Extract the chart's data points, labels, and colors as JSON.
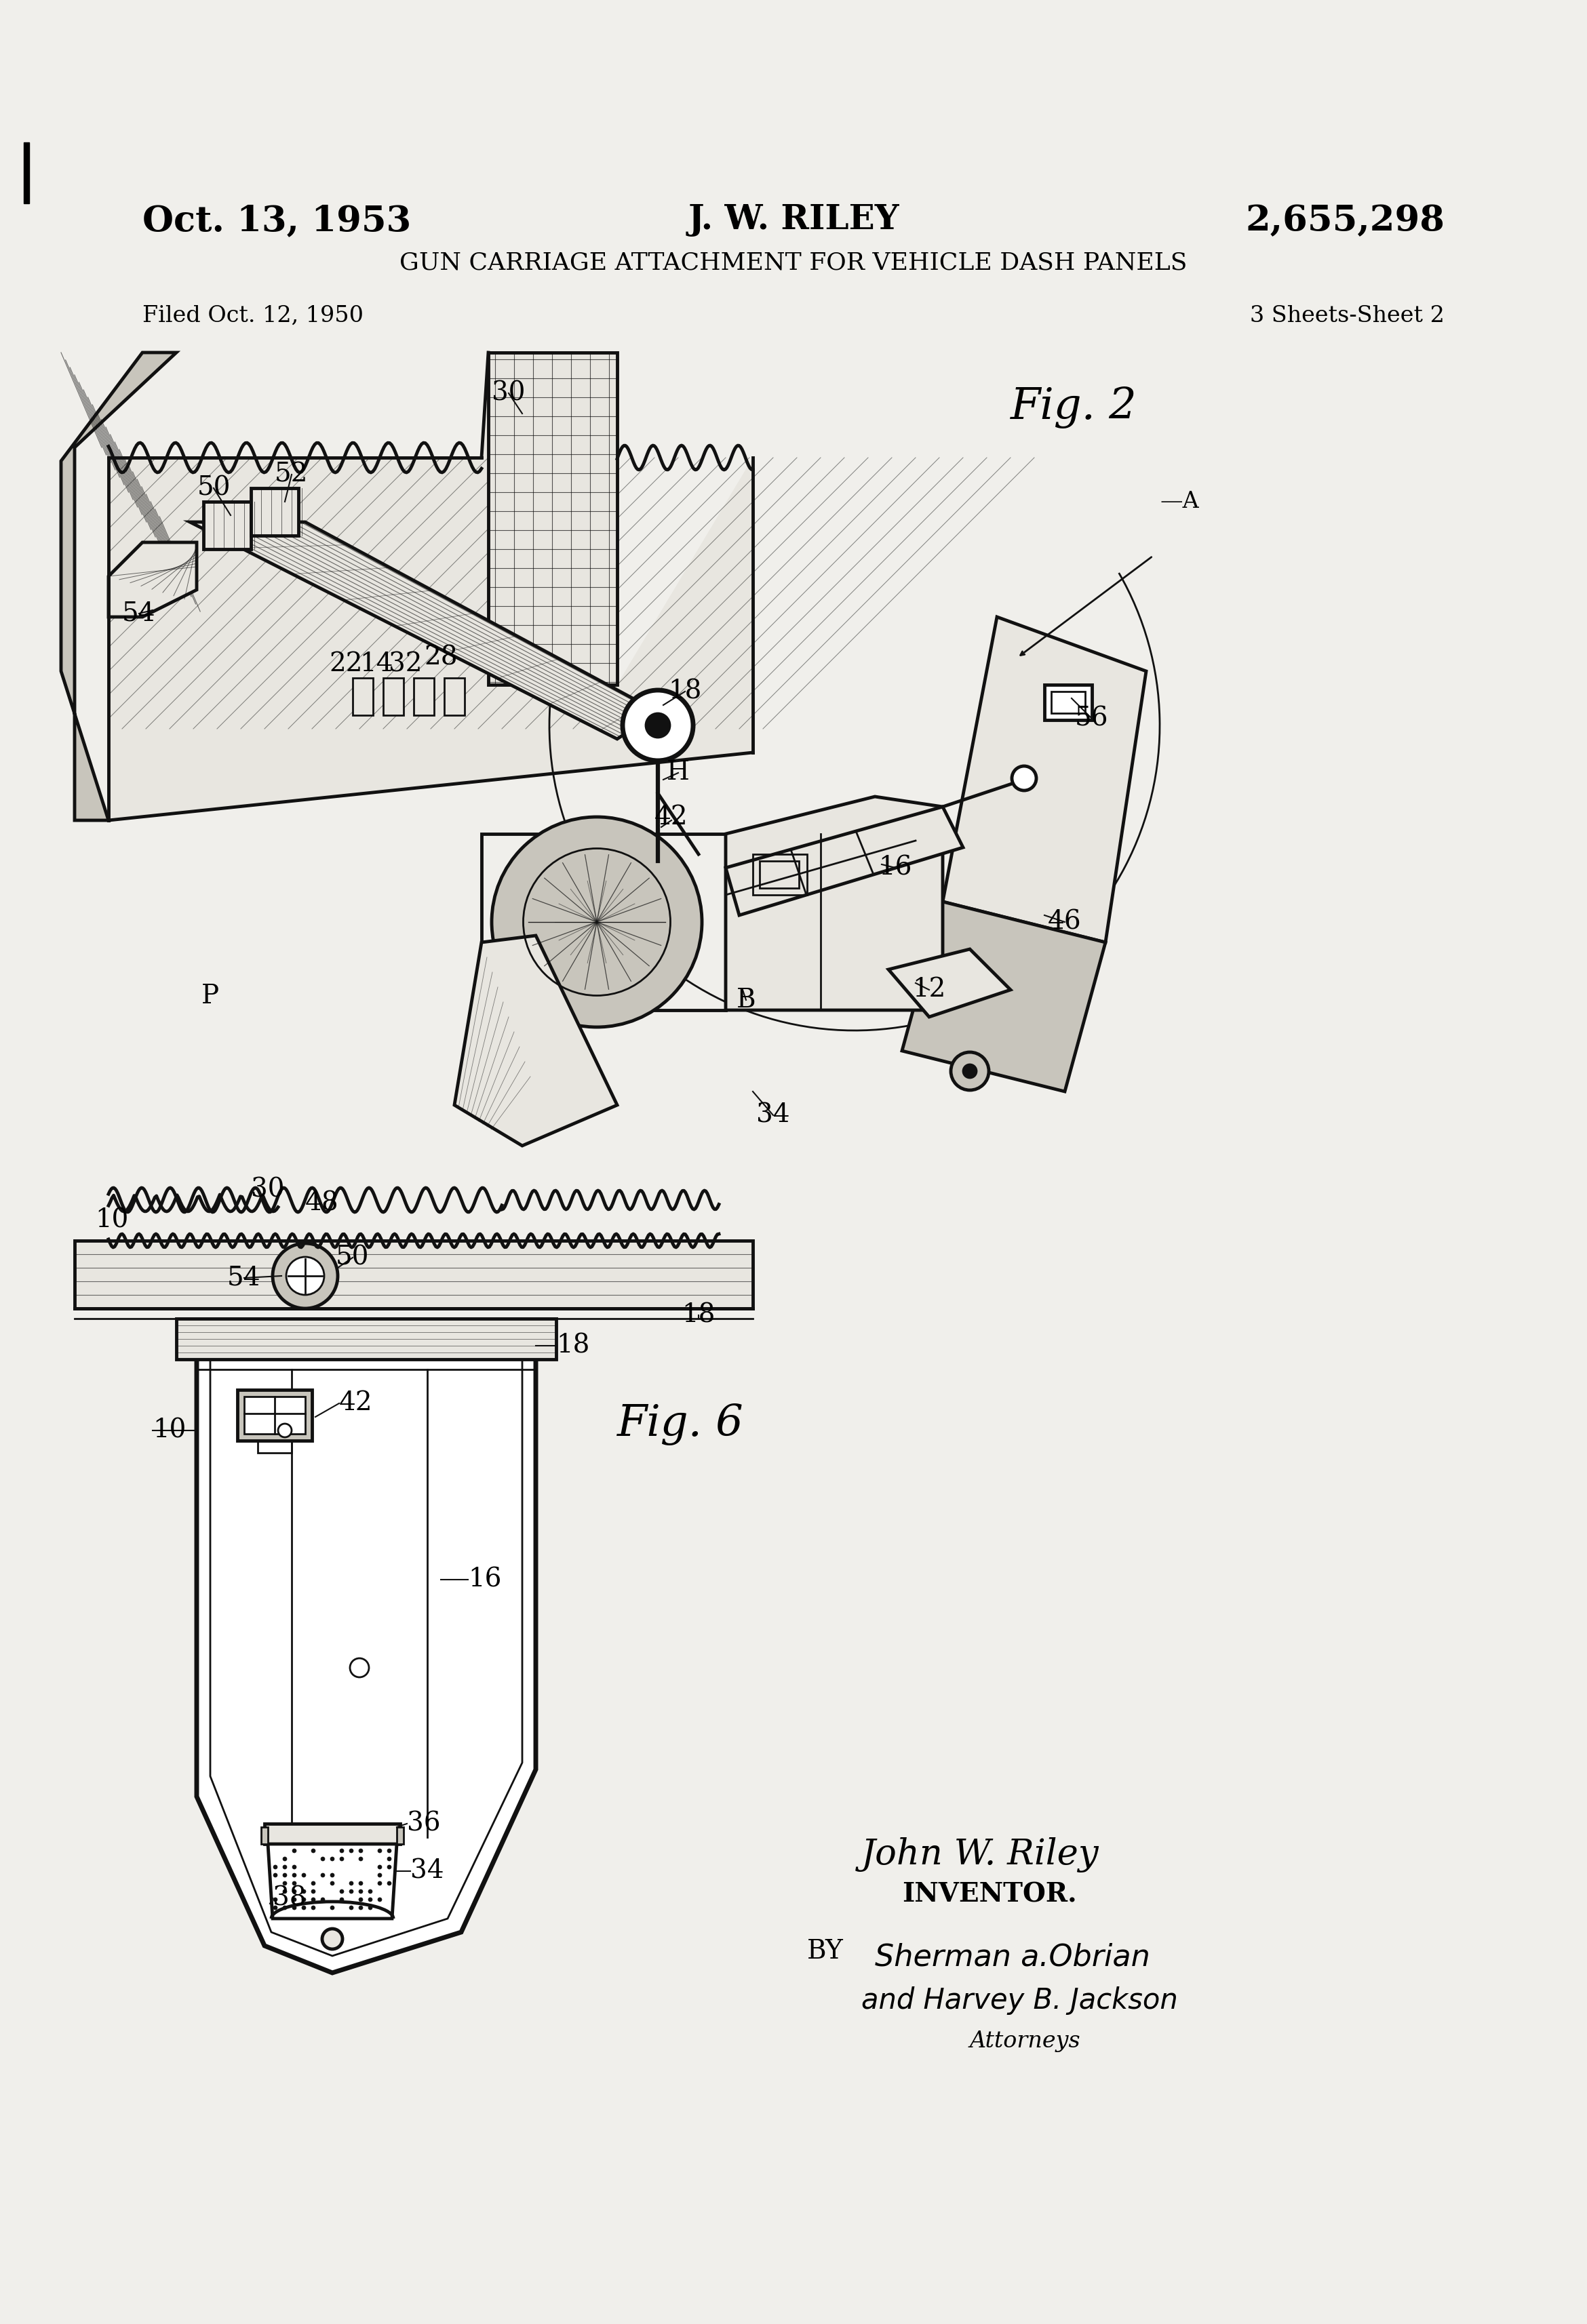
{
  "bg_color": "#f0efeb",
  "page_color": "#f7f6f2",
  "title_date": "Oct. 13, 1953",
  "title_inventor": "J. W. RILEY",
  "title_patent": "2,655,298",
  "title_subject": "GUN CARRIAGE ATTACHMENT FOR VEHICLE DASH PANELS",
  "filed_text": "Filed Oct. 12, 1950",
  "sheets_text": "3 Sheets-Sheet 2",
  "fig2_label": "Fig. 2",
  "fig6_label": "Fig. 6",
  "inventor_name": "John W. Riley",
  "inventor_title": "INVENTOR.",
  "by_text": "BY",
  "attorneys_text": "Attorneys",
  "line_color": "#111111",
  "fill_white": "#ffffff",
  "fill_light": "#e8e6e0",
  "fill_medium": "#c8c5bc",
  "fill_dark": "#a0a0a0",
  "hatch_color": "#222222"
}
